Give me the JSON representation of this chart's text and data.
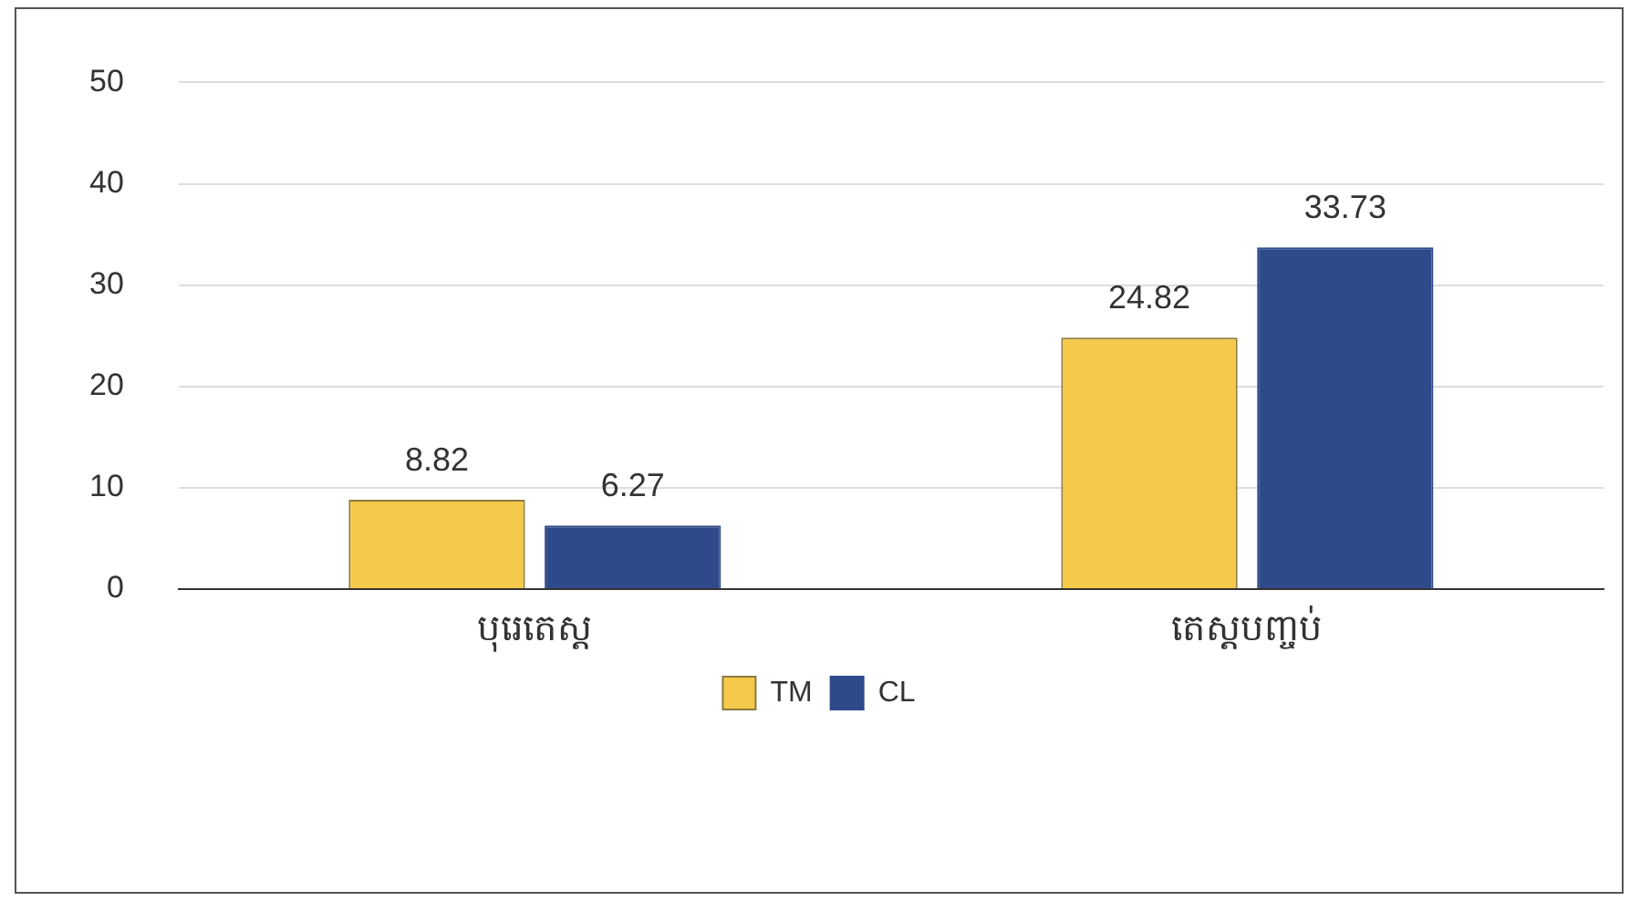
{
  "chart_data": {
    "type": "bar",
    "categories": [
      "បុរេតេស្ត",
      "តេស្តបញ្ចប់"
    ],
    "series": [
      {
        "name": "TM",
        "color": "#f5c94a",
        "values": [
          8.82,
          24.82
        ]
      },
      {
        "name": "CL",
        "color": "#2f4a8a",
        "values": [
          6.27,
          33.73
        ]
      }
    ],
    "ylim": [
      0,
      50
    ],
    "yticks": [
      0,
      10,
      20,
      30,
      40,
      50
    ],
    "grid": "y",
    "legend": "bottom",
    "data_labels": true
  }
}
